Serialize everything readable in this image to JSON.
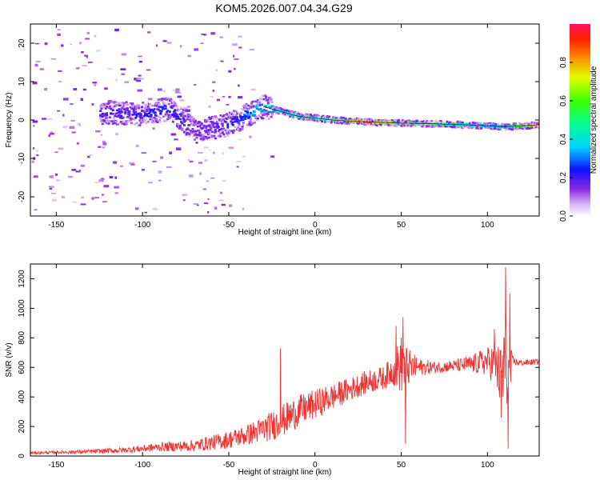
{
  "figure": {
    "title": "KOM5.2026.007.04.34.G29"
  },
  "chart_data": [
    {
      "type": "heatmap",
      "xlabel": "Height of straight line (km)",
      "ylabel": "Frequency (Hz)",
      "xlim": [
        -165,
        130
      ],
      "ylim": [
        -25,
        25
      ],
      "xticks": [
        -150,
        -100,
        -50,
        0,
        50,
        100
      ],
      "yticks": [
        -20,
        -10,
        0,
        10,
        20
      ],
      "colorbar": {
        "label": "Normalized spectral amplitude",
        "range": [
          0,
          1
        ],
        "ticks": [
          "0.0",
          "0.2",
          "0.4",
          "0.6",
          "0.8"
        ]
      },
      "ridge": [
        {
          "x": -120,
          "y": 2.0,
          "amp": 0.2
        },
        {
          "x": -100,
          "y": 1.5,
          "amp": 0.22
        },
        {
          "x": -85,
          "y": 3.0,
          "amp": 0.25
        },
        {
          "x": -70,
          "y": -3.0,
          "amp": 0.15
        },
        {
          "x": -50,
          "y": -1.0,
          "amp": 0.2
        },
        {
          "x": -30,
          "y": 3.5,
          "amp": 0.4
        },
        {
          "x": -10,
          "y": 1.0,
          "amp": 0.45
        },
        {
          "x": 10,
          "y": 0.0,
          "amp": 0.55
        },
        {
          "x": 30,
          "y": -0.5,
          "amp": 0.95
        },
        {
          "x": 50,
          "y": -0.8,
          "amp": 0.6
        },
        {
          "x": 70,
          "y": -1.0,
          "amp": 0.55
        },
        {
          "x": 90,
          "y": -1.3,
          "amp": 0.45
        },
        {
          "x": 110,
          "y": -1.8,
          "amp": 0.4
        },
        {
          "x": 130,
          "y": -1.2,
          "amp": 0.9
        }
      ]
    },
    {
      "type": "line",
      "xlabel": "Height of straight line (km)",
      "ylabel": "SNR (v/v)",
      "xlim": [
        -165,
        130
      ],
      "ylim": [
        0,
        1300
      ],
      "xticks": [
        -150,
        -100,
        -50,
        0,
        50,
        100
      ],
      "yticks": [
        0,
        200,
        400,
        600,
        800,
        1000,
        1200
      ],
      "series": [
        {
          "color": "#ee3333",
          "x": [
            -165,
            -150,
            -130,
            -110,
            -90,
            -70,
            -60,
            -50,
            -40,
            -30,
            -20,
            -10,
            0,
            10,
            20,
            30,
            40,
            45,
            50,
            55,
            60,
            70,
            80,
            90,
            100,
            105,
            108,
            110,
            112,
            115,
            120,
            130
          ],
          "mean": [
            20,
            25,
            30,
            40,
            60,
            70,
            90,
            110,
            140,
            180,
            230,
            300,
            350,
            400,
            450,
            500,
            530,
            580,
            620,
            600,
            600,
            600,
            610,
            620,
            640,
            620,
            500,
            650,
            500,
            640,
            630,
            640
          ],
          "noise": [
            10,
            10,
            15,
            20,
            30,
            40,
            50,
            60,
            70,
            90,
            110,
            110,
            100,
            90,
            80,
            80,
            80,
            100,
            200,
            120,
            60,
            40,
            40,
            60,
            100,
            150,
            250,
            400,
            300,
            30,
            20,
            20
          ],
          "spikes": [
            {
              "x": 51,
              "y": 940
            },
            {
              "x": 52.5,
              "y": 80
            },
            {
              "x": 47,
              "y": 880
            },
            {
              "x": 110.5,
              "y": 1280
            },
            {
              "x": 112,
              "y": 50
            },
            {
              "x": 113,
              "y": 1100
            },
            {
              "x": 104,
              "y": 860
            },
            {
              "x": -20,
              "y": 730
            },
            {
              "x": 108,
              "y": 260
            }
          ]
        }
      ]
    }
  ]
}
